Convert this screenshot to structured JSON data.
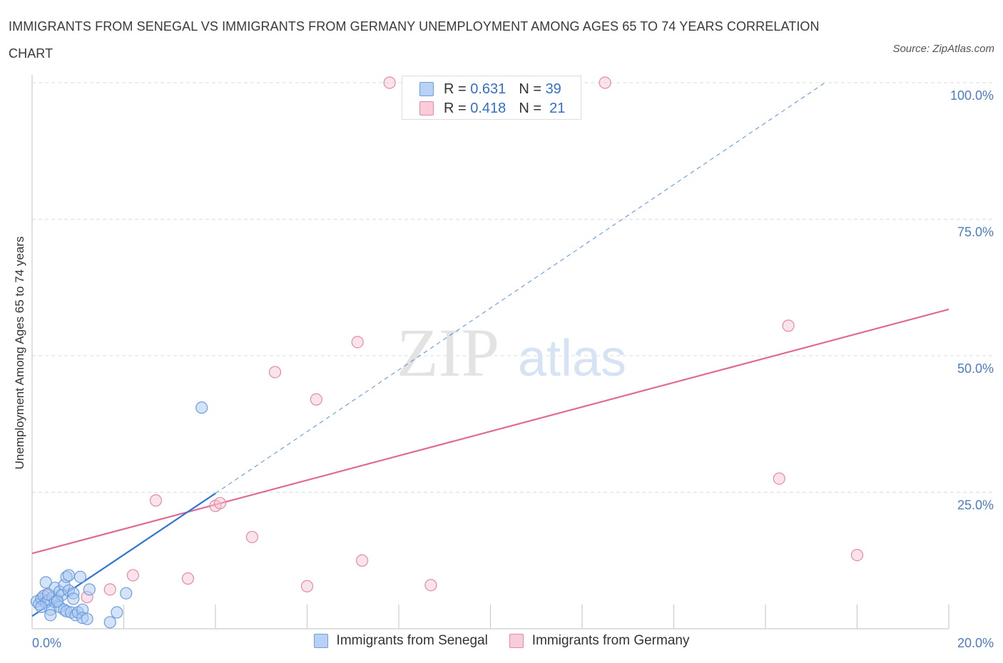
{
  "header": {
    "title": "IMMIGRANTS FROM SENEGAL VS IMMIGRANTS FROM GERMANY UNEMPLOYMENT AMONG AGES 65 TO 74 YEARS CORRELATION CHART",
    "source": "Source: ZipAtlas.com"
  },
  "watermark": {
    "zip": "ZIP",
    "atlas": "atlas"
  },
  "legend": {
    "senegal": {
      "r_label": "R =",
      "r_value": "0.631",
      "n_label": "N =",
      "n_value": "39"
    },
    "germany": {
      "r_label": "R =",
      "r_value": "0.418",
      "n_label": "N =",
      "n_value": "21"
    }
  },
  "colors": {
    "senegal_fill": "#a9c8f0",
    "senegal_stroke": "#6b9de0",
    "senegal_line": "#2e74d0",
    "germany_fill": "#f6c2d2",
    "germany_stroke": "#e48aa8",
    "germany_line": "#e06a94",
    "grid": "#dddddd",
    "axis_label": "#4a7cc4"
  },
  "chart_data": {
    "type": "scatter",
    "title": "IMMIGRANTS FROM SENEGAL VS IMMIGRANTS FROM GERMANY UNEMPLOYMENT AMONG AGES 65 TO 74 YEARS CORRELATION CHART",
    "xlabel": "",
    "ylabel": "Unemployment Among Ages 65 to 74 years",
    "xlim": [
      0,
      20
    ],
    "ylim": [
      0,
      100
    ],
    "x_tick_labels": [
      "0.0%",
      "20.0%"
    ],
    "y_tick_labels": [
      "25.0%",
      "50.0%",
      "75.0%",
      "100.0%"
    ],
    "y_ticks": [
      25,
      50,
      75,
      100
    ],
    "series": [
      {
        "name": "Immigrants from Senegal",
        "R": 0.631,
        "N": 39,
        "points": [
          [
            0.1,
            5.0
          ],
          [
            0.15,
            4.5
          ],
          [
            0.2,
            5.5
          ],
          [
            0.25,
            6.0
          ],
          [
            0.3,
            4.8
          ],
          [
            0.3,
            8.5
          ],
          [
            0.35,
            5.2
          ],
          [
            0.4,
            3.5
          ],
          [
            0.4,
            2.5
          ],
          [
            0.45,
            5.8
          ],
          [
            0.5,
            4.9
          ],
          [
            0.5,
            7.5
          ],
          [
            0.55,
            5.3
          ],
          [
            0.6,
            6.8
          ],
          [
            0.6,
            4.0
          ],
          [
            0.65,
            6.2
          ],
          [
            0.7,
            3.5
          ],
          [
            0.7,
            8.0
          ],
          [
            0.75,
            9.5
          ],
          [
            0.75,
            3.2
          ],
          [
            0.8,
            7.0
          ],
          [
            0.8,
            9.8
          ],
          [
            0.85,
            3.0
          ],
          [
            0.9,
            6.5
          ],
          [
            0.95,
            2.5
          ],
          [
            1.0,
            3.0
          ],
          [
            1.05,
            9.5
          ],
          [
            1.1,
            3.5
          ],
          [
            1.1,
            2.0
          ],
          [
            1.2,
            1.8
          ],
          [
            1.25,
            7.2
          ],
          [
            1.7,
            1.2
          ],
          [
            1.85,
            3.0
          ],
          [
            2.05,
            6.5
          ],
          [
            3.7,
            40.5
          ],
          [
            0.2,
            4.0
          ],
          [
            0.55,
            5.0
          ],
          [
            0.35,
            6.3
          ],
          [
            0.9,
            5.5
          ]
        ],
        "trend_solid": [
          [
            0.0,
            2.3
          ],
          [
            4.0,
            24.8
          ]
        ],
        "trend_dashed": [
          [
            4.0,
            24.8
          ],
          [
            17.3,
            100.0
          ]
        ]
      },
      {
        "name": "Immigrants from Germany",
        "R": 0.418,
        "N": 21,
        "points": [
          [
            7.8,
            100.0
          ],
          [
            12.5,
            100.0
          ],
          [
            7.1,
            52.5
          ],
          [
            5.3,
            47.0
          ],
          [
            6.2,
            42.0
          ],
          [
            16.5,
            55.5
          ],
          [
            16.3,
            27.5
          ],
          [
            18.0,
            13.5
          ],
          [
            2.7,
            23.5
          ],
          [
            4.0,
            22.5
          ],
          [
            4.1,
            23.0
          ],
          [
            4.8,
            16.8
          ],
          [
            7.2,
            12.5
          ],
          [
            3.4,
            9.2
          ],
          [
            2.2,
            9.8
          ],
          [
            6.0,
            7.8
          ],
          [
            8.7,
            8.0
          ],
          [
            1.7,
            7.2
          ],
          [
            1.2,
            5.8
          ],
          [
            0.2,
            5.5
          ],
          [
            0.3,
            6.2
          ]
        ],
        "trend_solid": [
          [
            0.0,
            13.8
          ],
          [
            20.0,
            58.5
          ]
        ]
      }
    ],
    "bottom_legend": [
      "Immigrants from Senegal",
      "Immigrants from Germany"
    ]
  }
}
